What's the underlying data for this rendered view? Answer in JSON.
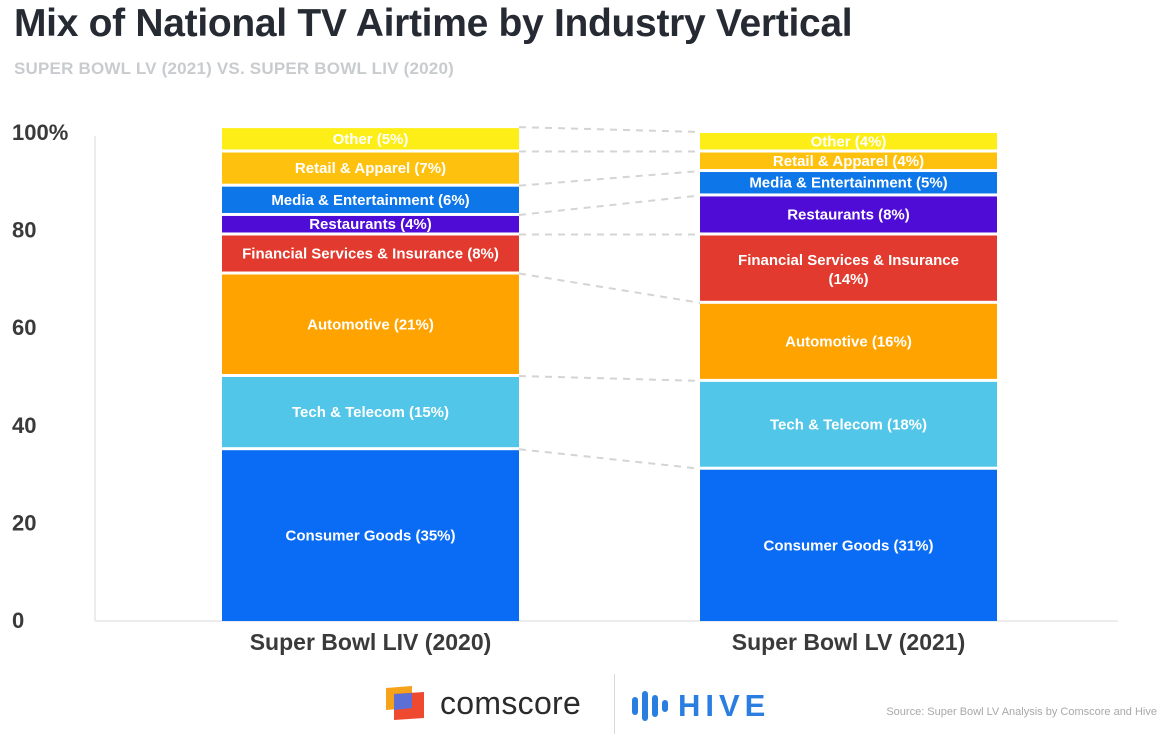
{
  "header": {
    "title": "Mix of National TV Airtime by Industry Vertical",
    "subtitle": "SUPER BOWL LV (2021) VS. SUPER BOWL LIV (2020)"
  },
  "chart_data": {
    "type": "bar",
    "stacked": true,
    "stacked_order": "bottom-to-top",
    "categories": [
      "Super Bowl LIV (2020)",
      "Super Bowl LV (2021)"
    ],
    "ylim": [
      0,
      100
    ],
    "yticks": [
      "0",
      "20",
      "40",
      "60",
      "80",
      "100%"
    ],
    "grid": false,
    "legend": "none",
    "series": [
      {
        "label": "Consumer Goods",
        "values": [
          35,
          31
        ],
        "labels": [
          "Consumer Goods (35%)",
          "Consumer Goods (31%)"
        ],
        "color": "#0a6cf5"
      },
      {
        "label": "Tech & Telecom",
        "values": [
          15,
          18
        ],
        "labels": [
          "Tech & Telecom (15%)",
          "Tech & Telecom (18%)"
        ],
        "color": "#52c6e8"
      },
      {
        "label": "Automotive",
        "values": [
          21,
          16
        ],
        "labels": [
          "Automotive (21%)",
          "Automotive (16%)"
        ],
        "color": "#ffa300"
      },
      {
        "label": "Financial Services & Insurance",
        "values": [
          8,
          14
        ],
        "labels": [
          "Financial Services & Insurance (8%)",
          "Financial Services & Insurance (14%)"
        ],
        "color": "#e23a2e"
      },
      {
        "label": "Restaurants",
        "values": [
          4,
          8
        ],
        "labels": [
          "Restaurants (4%)",
          "Restaurants (8%)"
        ],
        "color": "#4e0cd6"
      },
      {
        "label": "Media & Entertainment",
        "values": [
          6,
          5
        ],
        "labels": [
          "Media & Entertainment (6%)",
          "Media & Entertainment (5%)"
        ],
        "color": "#0d76e8"
      },
      {
        "label": "Retail & Apparel",
        "values": [
          7,
          4
        ],
        "labels": [
          "Retail & Apparel (7%)",
          "Retail & Apparel (4%)"
        ],
        "color": "#fdc10e"
      },
      {
        "label": "Other",
        "values": [
          5,
          4
        ],
        "labels": [
          "Other (5%)",
          "Other (4%)"
        ],
        "color": "#fcee16"
      }
    ]
  },
  "footer": {
    "logo_comscore": "comscore",
    "logo_hive": "HIVE",
    "source": "Source: Super Bowl LV Analysis by Comscore and Hive"
  },
  "colors": {
    "title": "#262a33",
    "subtitle": "#c9cccf",
    "axis_text": "#3a3a3a",
    "connector": "#d4d4d4",
    "hive_blue": "#2a7ee0"
  }
}
